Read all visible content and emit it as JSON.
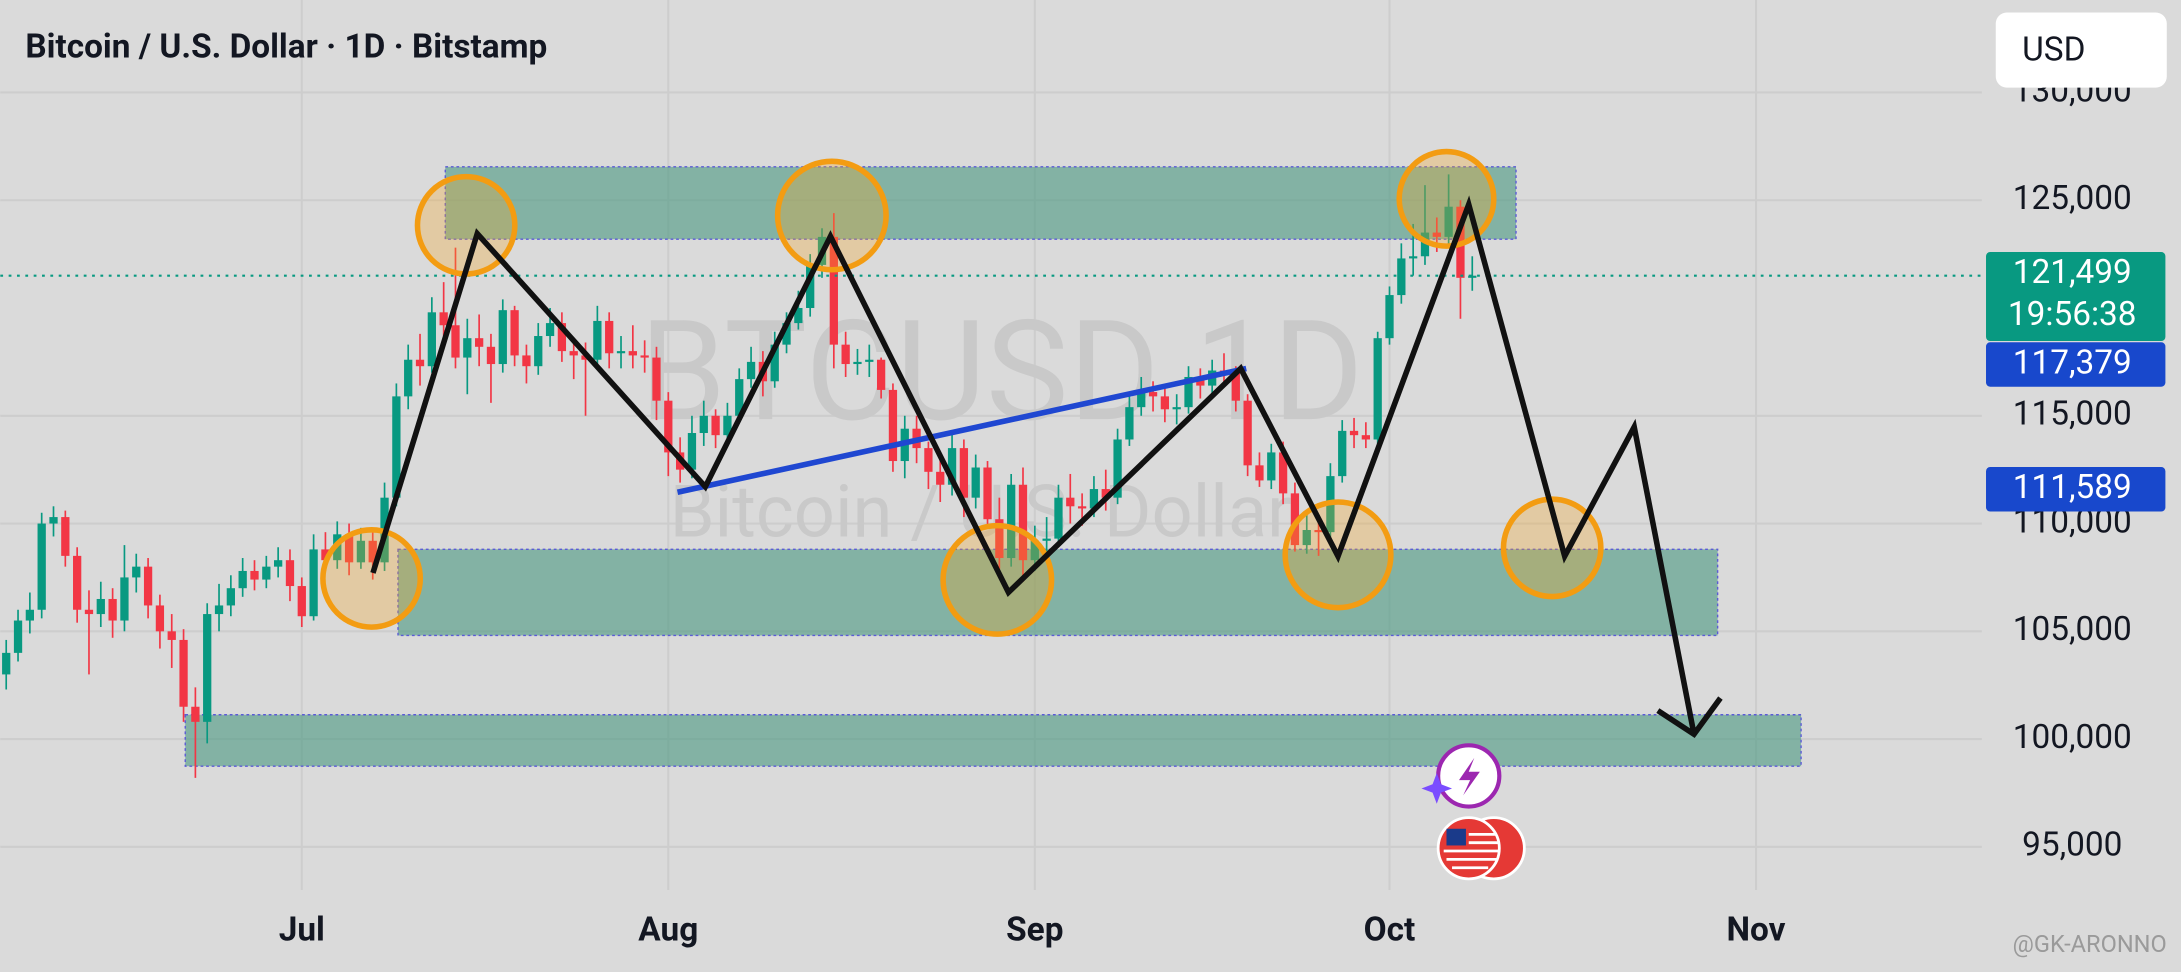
{
  "chart_data": {
    "type": "candlestick",
    "title": "Bitcoin / U.S. Dollar · 1D · Bitstamp",
    "currency_button": "USD",
    "watermark": "BTCUSD 1D",
    "watermark_subtitle": "Bitcoin / U.S. Dollar",
    "author": "@GK-ARONNO",
    "up_color": "#089981",
    "down_color": "#f23645",
    "grid": true,
    "xlim": [
      -0.5,
      167.1
    ],
    "xticks": [
      {
        "value": 25,
        "label": "Jul"
      },
      {
        "value": 56,
        "label": "Aug"
      },
      {
        "value": 87,
        "label": "Sep"
      },
      {
        "value": 117,
        "label": "Oct"
      },
      {
        "value": 148,
        "label": "Nov"
      }
    ],
    "ylim": [
      93000,
      134290
    ],
    "yticks": [
      {
        "value": 95000,
        "label": "95,000"
      },
      {
        "value": 100000,
        "label": "100,000"
      },
      {
        "value": 105000,
        "label": "105,000"
      },
      {
        "value": 110000,
        "label": "110,000"
      },
      {
        "value": 115000,
        "label": "115,000"
      },
      {
        "value": 125000,
        "label": "125,000"
      },
      {
        "value": 130000,
        "label": "130,000"
      }
    ],
    "price_labels": [
      {
        "value": 121499,
        "label": "121,499",
        "countdown": "19:56:38",
        "color": "#089981"
      },
      {
        "value": 117379,
        "label": "117,379",
        "color": "#1848cc"
      },
      {
        "value": 111589,
        "label": "111,589",
        "color": "#1848cc"
      }
    ],
    "ohlc": [
      [
        103000,
        104600,
        102300,
        104000
      ],
      [
        104000,
        106000,
        103600,
        105500
      ],
      [
        105500,
        106800,
        104900,
        106000
      ],
      [
        106000,
        110500,
        105600,
        110000
      ],
      [
        110000,
        110800,
        109400,
        110300
      ],
      [
        110300,
        110600,
        108000,
        108500
      ],
      [
        108500,
        108900,
        105400,
        106000
      ],
      [
        106000,
        106900,
        103000,
        105800
      ],
      [
        105800,
        107300,
        105200,
        106500
      ],
      [
        106500,
        107000,
        104700,
        105500
      ],
      [
        105500,
        109000,
        105000,
        107500
      ],
      [
        107500,
        108600,
        106800,
        108000
      ],
      [
        108000,
        108400,
        105600,
        106200
      ],
      [
        106200,
        106700,
        104200,
        105000
      ],
      [
        105000,
        105800,
        103300,
        104600
      ],
      [
        104600,
        105100,
        100800,
        101500
      ],
      [
        101500,
        102400,
        98200,
        100800
      ],
      [
        100800,
        106300,
        99800,
        105800
      ],
      [
        105800,
        107200,
        105000,
        106200
      ],
      [
        106200,
        107600,
        105700,
        107000
      ],
      [
        107000,
        108400,
        106600,
        107800
      ],
      [
        107800,
        108300,
        106900,
        107400
      ],
      [
        107400,
        108500,
        107000,
        108000
      ],
      [
        108000,
        108900,
        107500,
        108300
      ],
      [
        108300,
        108800,
        106400,
        107100
      ],
      [
        107100,
        107500,
        105200,
        105700
      ],
      [
        105700,
        109500,
        105500,
        108800
      ],
      [
        108800,
        109600,
        107800,
        108300
      ],
      [
        108300,
        110100,
        107900,
        109500
      ],
      [
        109500,
        110000,
        107600,
        108200
      ],
      [
        108200,
        109800,
        107900,
        109200
      ],
      [
        109200,
        109600,
        107400,
        108200
      ],
      [
        108200,
        111900,
        107800,
        111200
      ],
      [
        111200,
        116500,
        110800,
        115900
      ],
      [
        115900,
        118300,
        115300,
        117600
      ],
      [
        117600,
        118800,
        116400,
        117300
      ],
      [
        117300,
        120500,
        117000,
        119800
      ],
      [
        119800,
        121200,
        118700,
        119200
      ],
      [
        119200,
        122800,
        117200,
        117700
      ],
      [
        117700,
        119500,
        116000,
        118600
      ],
      [
        118600,
        119700,
        117300,
        118200
      ],
      [
        118200,
        118800,
        115600,
        117400
      ],
      [
        117400,
        120400,
        117000,
        119900
      ],
      [
        119900,
        120100,
        117300,
        117800
      ],
      [
        117800,
        118300,
        116500,
        117300
      ],
      [
        117300,
        119300,
        116900,
        118700
      ],
      [
        118700,
        120000,
        118200,
        119300
      ],
      [
        119300,
        119800,
        117500,
        118000
      ],
      [
        118000,
        118600,
        116700,
        117800
      ],
      [
        117800,
        118400,
        115000,
        117600
      ],
      [
        117600,
        120100,
        117300,
        119400
      ],
      [
        119400,
        119800,
        117200,
        117900
      ],
      [
        117900,
        118700,
        117200,
        118000
      ],
      [
        118000,
        119200,
        117200,
        117800
      ],
      [
        117800,
        118500,
        117000,
        117700
      ],
      [
        117700,
        118200,
        114800,
        115700
      ],
      [
        115700,
        116100,
        112200,
        113300
      ],
      [
        113300,
        114000,
        111900,
        112500
      ],
      [
        112500,
        115000,
        112100,
        114200
      ],
      [
        114200,
        115700,
        113600,
        115000
      ],
      [
        115000,
        115300,
        113500,
        114100
      ],
      [
        114100,
        115600,
        113800,
        115000
      ],
      [
        115000,
        117200,
        114800,
        116700
      ],
      [
        116700,
        118200,
        116300,
        117500
      ],
      [
        117500,
        118000,
        115900,
        116600
      ],
      [
        116600,
        118900,
        116300,
        118300
      ],
      [
        118300,
        119800,
        117900,
        119300
      ],
      [
        119300,
        120800,
        119000,
        120000
      ],
      [
        120000,
        122500,
        119600,
        122000
      ],
      [
        122000,
        123700,
        121400,
        123300
      ],
      [
        123300,
        124400,
        117200,
        118300
      ],
      [
        118300,
        118900,
        116800,
        117400
      ],
      [
        117400,
        118100,
        116900,
        117500
      ],
      [
        117500,
        118300,
        116800,
        117600
      ],
      [
        117600,
        117700,
        115800,
        116200
      ],
      [
        116200,
        116500,
        112400,
        112900
      ],
      [
        112900,
        115000,
        112100,
        114400
      ],
      [
        114400,
        115000,
        112800,
        113500
      ],
      [
        113500,
        113800,
        111600,
        112400
      ],
      [
        112400,
        113300,
        111000,
        111800
      ],
      [
        111800,
        114200,
        111300,
        113500
      ],
      [
        113500,
        113900,
        110300,
        111200
      ],
      [
        111200,
        113200,
        110700,
        112600
      ],
      [
        112600,
        112900,
        109800,
        110200
      ],
      [
        110200,
        111200,
        107900,
        108400
      ],
      [
        108400,
        112300,
        108000,
        111800
      ],
      [
        111800,
        112600,
        107300,
        108300
      ],
      [
        108300,
        109900,
        107800,
        109200
      ],
      [
        109200,
        110300,
        108600,
        109300
      ],
      [
        109300,
        111800,
        109000,
        111200
      ],
      [
        111200,
        112300,
        110000,
        110800
      ],
      [
        110800,
        111400,
        109900,
        110700
      ],
      [
        110700,
        112200,
        110300,
        111600
      ],
      [
        111600,
        112500,
        110600,
        111200
      ],
      [
        111200,
        114400,
        110900,
        113900
      ],
      [
        113900,
        115900,
        113600,
        115400
      ],
      [
        115400,
        116800,
        115000,
        116100
      ],
      [
        116100,
        116600,
        115200,
        115900
      ],
      [
        115900,
        116300,
        114700,
        115300
      ],
      [
        115300,
        116000,
        114600,
        115400
      ],
      [
        115400,
        117300,
        115100,
        116800
      ],
      [
        116800,
        117200,
        115800,
        116400
      ],
      [
        116400,
        117600,
        115900,
        117100
      ],
      [
        117100,
        117900,
        116500,
        117000
      ],
      [
        117000,
        117300,
        115200,
        115700
      ],
      [
        115700,
        116000,
        112200,
        112700
      ],
      [
        112700,
        113300,
        111700,
        112000
      ],
      [
        112000,
        113700,
        111600,
        113300
      ],
      [
        113300,
        113800,
        110900,
        111400
      ],
      [
        111400,
        111900,
        108700,
        109000
      ],
      [
        109000,
        110400,
        108600,
        109700
      ],
      [
        109700,
        110200,
        108500,
        109600
      ],
      [
        109600,
        112800,
        109300,
        112200
      ],
      [
        112200,
        114800,
        111900,
        114300
      ],
      [
        114300,
        114900,
        113500,
        114100
      ],
      [
        114100,
        114700,
        113500,
        113900
      ],
      [
        113900,
        118900,
        113700,
        118600
      ],
      [
        118600,
        121000,
        118300,
        120600
      ],
      [
        120600,
        123000,
        120200,
        122300
      ],
      [
        122300,
        123900,
        121500,
        122400
      ],
      [
        122400,
        125700,
        122000,
        123500
      ],
      [
        123500,
        124200,
        122600,
        123300
      ],
      [
        123300,
        126200,
        122900,
        124700
      ],
      [
        124700,
        125000,
        119500,
        121400
      ],
      [
        121400,
        122400,
        120800,
        121499
      ]
    ]
  }
}
